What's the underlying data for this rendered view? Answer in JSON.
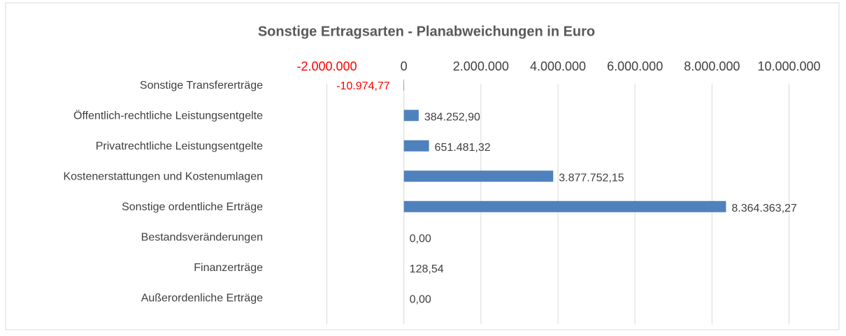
{
  "chart_data": {
    "type": "bar",
    "orientation": "horizontal",
    "title": "Sonstige Ertragsarten - Planabweichungen in Euro",
    "categories": [
      "Sonstige Transfererträge",
      "Öffentlich-rechtliche Leistungsentgelte",
      "Privatrechtliche Leistungsentgelte",
      "Kostenerstattungen und Kostenumlagen",
      "Sonstige ordentliche Erträge",
      "Bestandsveränderungen",
      "Finanzerträge",
      "Außerordenliche Erträge"
    ],
    "values": [
      -10974.77,
      384252.9,
      651481.32,
      3877752.15,
      8364363.27,
      0,
      128.54,
      0
    ],
    "value_labels": [
      "-10.974,77",
      "384.252,90",
      "651.481,32",
      "3.877.752,15",
      "8.364.363,27",
      "0,00",
      "128,54",
      "0,00"
    ],
    "color": "#4f81bd",
    "negative_color": "#ff0000",
    "xlim": [
      -2000000,
      10000000
    ],
    "xticks": [
      {
        "value": -2000000,
        "label": "-2.000.000"
      },
      0,
      {
        "value": 2000000,
        "label": "2.000.000"
      },
      {
        "value": 4000000,
        "label": "4.000.000"
      },
      {
        "value": 6000000,
        "label": "6.000.000"
      },
      {
        "value": 8000000,
        "label": "8.000.000"
      },
      {
        "value": 10000000,
        "label": "10.000.000"
      }
    ],
    "grid": true
  }
}
